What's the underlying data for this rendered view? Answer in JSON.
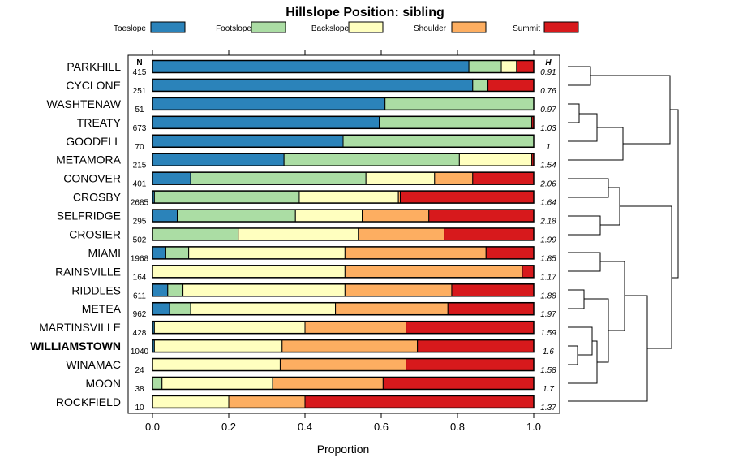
{
  "chart_data": {
    "type": "bar",
    "orientation": "horizontal",
    "stacked": true,
    "title": "Hillslope Position: sibling",
    "xlabel": "Proportion",
    "ylabel": "",
    "xlim": [
      0,
      1
    ],
    "xticks": [
      "0.0",
      "0.2",
      "0.4",
      "0.6",
      "0.8",
      "1.0"
    ],
    "legend_position": "top",
    "n_header": "N",
    "h_header": "H",
    "highlight_category": "WILLIAMSTOWN",
    "colors": [
      "#2b83ba",
      "#abdda4",
      "#ffffbf",
      "#fdae61",
      "#d7191c"
    ],
    "legend_labels": [
      "Toeslope",
      "Footslope",
      "Backslope",
      "Shoulder",
      "Summit"
    ],
    "categories": [
      "PARKHILL",
      "CYCLONE",
      "WASHTENAW",
      "TREATY",
      "GOODELL",
      "METAMORA",
      "CONOVER",
      "CROSBY",
      "SELFRIDGE",
      "CROSIER",
      "MIAMI",
      "RAINSVILLE",
      "RIDDLES",
      "METEA",
      "MARTINSVILLE",
      "WILLIAMSTOWN",
      "WINAMAC",
      "MOON",
      "ROCKFIELD"
    ],
    "n": [
      "415",
      "251",
      "51",
      "673",
      "70",
      "215",
      "401",
      "2685",
      "295",
      "502",
      "1968",
      "164",
      "611",
      "962",
      "428",
      "1040",
      "24",
      "38",
      "10"
    ],
    "h": [
      "0.91",
      "0.76",
      "0.97",
      "1.03",
      "1",
      "1.54",
      "2.06",
      "1.64",
      "2.18",
      "1.99",
      "1.85",
      "1.17",
      "1.88",
      "1.97",
      "1.59",
      "1.6",
      "1.58",
      "1.7",
      "1.37"
    ],
    "series": [
      {
        "name": "Toeslope",
        "values": [
          0.83,
          0.84,
          0.61,
          0.595,
          0.5,
          0.345,
          0.1,
          0.005,
          0.065,
          0.0,
          0.035,
          0.0,
          0.04,
          0.045,
          0.005,
          0.005,
          0.0,
          0.0,
          0.0
        ]
      },
      {
        "name": "Footslope",
        "values": [
          0.085,
          0.04,
          0.39,
          0.4,
          0.5,
          0.46,
          0.46,
          0.38,
          0.31,
          0.225,
          0.06,
          0.0,
          0.04,
          0.055,
          0.0,
          0.0,
          0.0,
          0.025,
          0.0
        ]
      },
      {
        "name": "Backslope",
        "values": [
          0.04,
          0.0,
          0.0,
          0.0,
          0.0,
          0.19,
          0.18,
          0.26,
          0.175,
          0.315,
          0.41,
          0.505,
          0.425,
          0.38,
          0.395,
          0.335,
          0.335,
          0.29,
          0.2
        ]
      },
      {
        "name": "Shoulder",
        "values": [
          0.0,
          0.0,
          0.0,
          0.0,
          0.0,
          0.0,
          0.1,
          0.005,
          0.175,
          0.225,
          0.37,
          0.465,
          0.28,
          0.295,
          0.265,
          0.355,
          0.33,
          0.29,
          0.2
        ]
      },
      {
        "name": "Summit",
        "values": [
          0.045,
          0.12,
          0.0,
          0.005,
          0.0,
          0.005,
          0.16,
          0.35,
          0.275,
          0.235,
          0.125,
          0.03,
          0.215,
          0.225,
          0.335,
          0.305,
          0.335,
          0.395,
          0.6
        ]
      }
    ],
    "dendrogram": "hierarchical clustering of series shown at right"
  }
}
